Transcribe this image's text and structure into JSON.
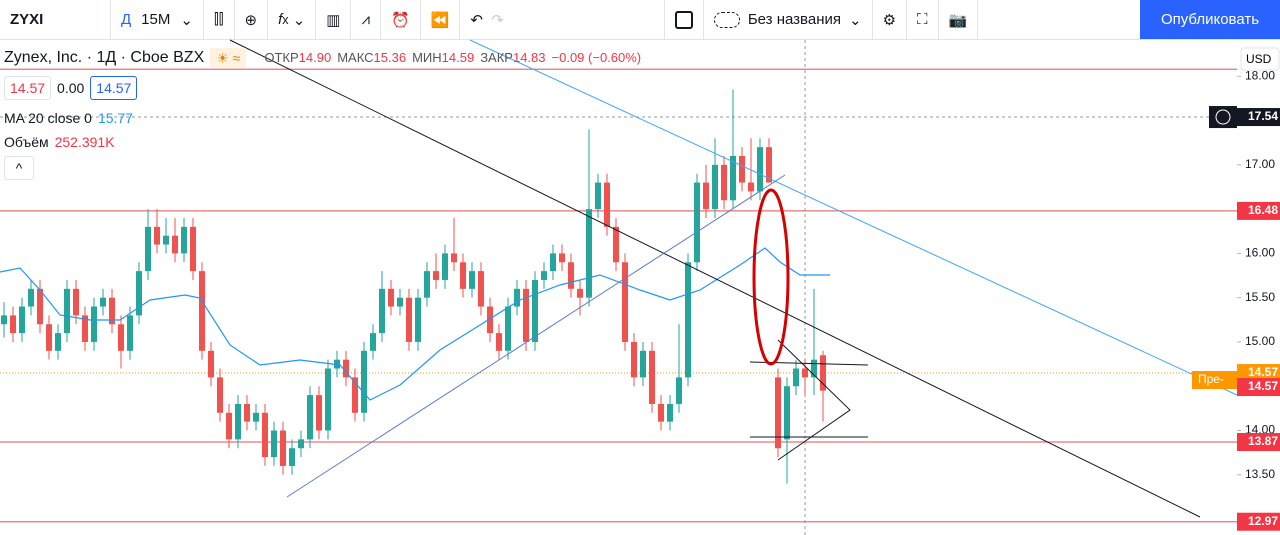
{
  "toolbar": {
    "symbol": "ZYXI",
    "d": "Д",
    "interval": "15M",
    "chart_name": "Без названия",
    "publish": "Опубликовать"
  },
  "legend": {
    "title": "Zynex, Inc. · 1Д · Cboe BZX",
    "open_label": "ОТКР",
    "open": "14.90",
    "high_label": "МАКС",
    "high": "15.36",
    "low_label": "МИН",
    "low": "14.59",
    "close_label": "ЗАКР",
    "close": "14.83",
    "change": "−0.09 (−0.60%)",
    "box1": "14.57",
    "box2": "0.00",
    "box3": "14.57",
    "ma_label": "MA 20 close 0",
    "ma_value": "15.77",
    "volume_label": "Объём",
    "volume_value": "252.391K"
  },
  "currency": "USD",
  "premarket_tag": "Пре-",
  "chart_data": {
    "type": "candlestick",
    "up_color": "#26a69a",
    "down_color": "#ef5350",
    "ylim": [
      12.82,
      18.41
    ],
    "yticks": [
      {
        "value": 18,
        "label": "18.00"
      },
      {
        "value": 17,
        "label": "17.00"
      },
      {
        "value": 16,
        "label": "16.00"
      },
      {
        "value": 15.5,
        "label": "15.50"
      },
      {
        "value": 15,
        "label": "15.00"
      },
      {
        "value": 14,
        "label": "14.00"
      },
      {
        "value": 13.5,
        "label": "13.50"
      }
    ],
    "levels": [
      18.08,
      16.48,
      13.87,
      12.97
    ],
    "price_labels": [
      {
        "value": 17.54,
        "label": "17.54",
        "color": "#131722"
      },
      {
        "value": 16.48,
        "label": "16.48",
        "color": "#f23645"
      },
      {
        "value": 14.57,
        "label": "14.57",
        "color": "#ff9800"
      },
      {
        "value": 14.57,
        "label": "14.57",
        "color": "#f23645"
      },
      {
        "value": 13.87,
        "label": "13.87",
        "color": "#f23645"
      },
      {
        "value": 12.97,
        "label": "12.97",
        "color": "#f23645"
      }
    ],
    "ohlc": [
      [
        15.2,
        15.45,
        15.05,
        15.3
      ],
      [
        15.3,
        15.4,
        15.0,
        15.1
      ],
      [
        15.1,
        15.5,
        15.0,
        15.4
      ],
      [
        15.4,
        15.7,
        15.3,
        15.6
      ],
      [
        15.6,
        15.7,
        15.1,
        15.2
      ],
      [
        15.2,
        15.3,
        14.8,
        14.9
      ],
      [
        14.9,
        15.2,
        14.8,
        15.1
      ],
      [
        15.1,
        15.7,
        15.0,
        15.6
      ],
      [
        15.6,
        15.7,
        15.2,
        15.3
      ],
      [
        15.3,
        15.4,
        14.9,
        15.0
      ],
      [
        15.0,
        15.5,
        14.9,
        15.4
      ],
      [
        15.4,
        15.6,
        15.3,
        15.5
      ],
      [
        15.5,
        15.6,
        15.1,
        15.2
      ],
      [
        15.2,
        15.3,
        14.7,
        14.9
      ],
      [
        14.9,
        15.4,
        14.8,
        15.3
      ],
      [
        15.3,
        15.9,
        15.2,
        15.8
      ],
      [
        15.8,
        16.5,
        15.7,
        16.3
      ],
      [
        16.3,
        16.5,
        16.0,
        16.1
      ],
      [
        16.1,
        16.4,
        16.0,
        16.2
      ],
      [
        16.2,
        16.4,
        15.9,
        16.0
      ],
      [
        16.0,
        16.4,
        15.9,
        16.3
      ],
      [
        16.3,
        16.4,
        15.7,
        15.8
      ],
      [
        15.8,
        15.9,
        14.8,
        14.9
      ],
      [
        14.9,
        15.0,
        14.5,
        14.6
      ],
      [
        14.6,
        14.7,
        14.1,
        14.2
      ],
      [
        14.2,
        14.3,
        13.8,
        13.9
      ],
      [
        13.9,
        14.4,
        13.8,
        14.3
      ],
      [
        14.3,
        14.4,
        14.0,
        14.1
      ],
      [
        14.1,
        14.3,
        14.0,
        14.2
      ],
      [
        14.2,
        14.3,
        13.6,
        13.7
      ],
      [
        13.7,
        14.1,
        13.6,
        14.0
      ],
      [
        14.0,
        14.1,
        13.5,
        13.6
      ],
      [
        13.6,
        13.9,
        13.5,
        13.8
      ],
      [
        13.8,
        14.0,
        13.7,
        13.9
      ],
      [
        13.9,
        14.5,
        13.8,
        14.4
      ],
      [
        14.4,
        14.5,
        13.9,
        14.0
      ],
      [
        14.0,
        14.8,
        13.9,
        14.7
      ],
      [
        14.7,
        14.9,
        14.6,
        14.8
      ],
      [
        14.8,
        14.9,
        14.5,
        14.6
      ],
      [
        14.6,
        14.7,
        14.1,
        14.2
      ],
      [
        14.2,
        15.0,
        14.1,
        14.9
      ],
      [
        14.9,
        15.2,
        14.8,
        15.1
      ],
      [
        15.1,
        15.8,
        15.0,
        15.6
      ],
      [
        15.6,
        15.7,
        15.3,
        15.4
      ],
      [
        15.4,
        15.6,
        15.3,
        15.5
      ],
      [
        15.5,
        15.6,
        14.9,
        15.0
      ],
      [
        15.0,
        15.6,
        14.9,
        15.5
      ],
      [
        15.5,
        15.9,
        15.4,
        15.8
      ],
      [
        15.8,
        16.0,
        15.6,
        15.7
      ],
      [
        15.7,
        16.1,
        15.6,
        16.0
      ],
      [
        16.0,
        16.4,
        15.8,
        15.9
      ],
      [
        15.9,
        16.0,
        15.5,
        15.6
      ],
      [
        15.6,
        15.9,
        15.5,
        15.8
      ],
      [
        15.8,
        15.9,
        15.3,
        15.4
      ],
      [
        15.4,
        15.5,
        15.0,
        15.1
      ],
      [
        15.1,
        15.2,
        14.8,
        14.9
      ],
      [
        14.9,
        15.5,
        14.8,
        15.4
      ],
      [
        15.4,
        15.7,
        15.3,
        15.6
      ],
      [
        15.6,
        15.7,
        14.9,
        15.0
      ],
      [
        15.0,
        15.8,
        14.9,
        15.7
      ],
      [
        15.7,
        15.9,
        15.6,
        15.8
      ],
      [
        15.8,
        16.1,
        15.7,
        16.0
      ],
      [
        16.0,
        16.1,
        15.8,
        15.9
      ],
      [
        15.9,
        16.0,
        15.5,
        15.6
      ],
      [
        15.6,
        15.7,
        15.3,
        15.5
      ],
      [
        15.5,
        17.4,
        15.4,
        16.5
      ],
      [
        16.5,
        16.9,
        16.4,
        16.8
      ],
      [
        16.8,
        16.9,
        16.2,
        16.3
      ],
      [
        16.3,
        16.4,
        15.8,
        15.9
      ],
      [
        15.9,
        16.0,
        14.9,
        15.0
      ],
      [
        15.0,
        15.1,
        14.5,
        14.6
      ],
      [
        14.6,
        15.0,
        14.5,
        14.9
      ],
      [
        14.9,
        15.0,
        14.2,
        14.3
      ],
      [
        14.3,
        14.4,
        14.0,
        14.1
      ],
      [
        14.1,
        14.4,
        14.0,
        14.3
      ],
      [
        14.3,
        15.2,
        14.2,
        14.6
      ],
      [
        14.6,
        16.0,
        14.5,
        15.9
      ],
      [
        15.9,
        16.9,
        15.8,
        16.8
      ],
      [
        16.8,
        17.0,
        16.4,
        16.5
      ],
      [
        16.5,
        17.3,
        16.4,
        17.0
      ],
      [
        17.0,
        17.1,
        16.5,
        16.6
      ],
      [
        16.6,
        17.85,
        16.5,
        17.1
      ],
      [
        17.1,
        17.2,
        16.7,
        16.8
      ],
      [
        16.8,
        17.3,
        16.6,
        16.7
      ],
      [
        16.7,
        17.3,
        16.6,
        17.2
      ],
      [
        17.2,
        17.3,
        16.8,
        16.8
      ],
      [
        14.6,
        14.7,
        13.7,
        13.8
      ],
      [
        13.9,
        14.6,
        13.4,
        14.5
      ],
      [
        14.5,
        14.8,
        14.4,
        14.7
      ],
      [
        14.7,
        14.8,
        14.4,
        14.6
      ],
      [
        14.6,
        15.6,
        14.4,
        14.8
      ],
      [
        14.85,
        14.9,
        14.1,
        14.45
      ]
    ]
  }
}
